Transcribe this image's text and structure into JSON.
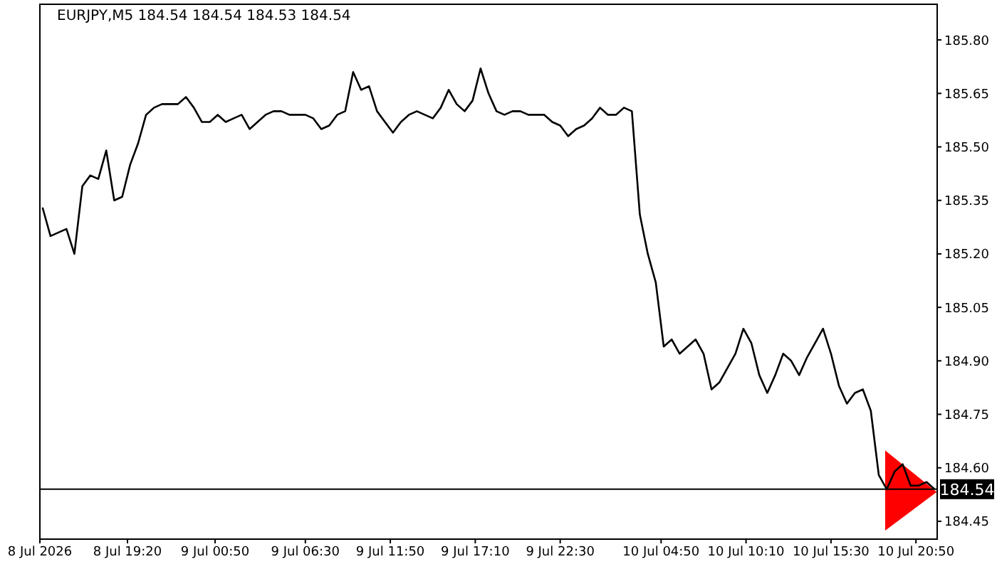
{
  "chart_data": {
    "type": "line",
    "title": "EURJPY,M5  184.54 184.54 184.53 184.54",
    "x": [
      "2026-07-08T14:00",
      "2026-07-08T14:30",
      "2026-07-08T15:00",
      "2026-07-08T15:30",
      "2026-07-08T16:00",
      "2026-07-08T16:30",
      "2026-07-08T17:00",
      "2026-07-08T17:30",
      "2026-07-08T18:00",
      "2026-07-08T18:30",
      "2026-07-08T19:00",
      "2026-07-08T19:30",
      "2026-07-08T20:00",
      "2026-07-08T20:30",
      "2026-07-08T21:00",
      "2026-07-08T21:30",
      "2026-07-08T22:00",
      "2026-07-08T22:30",
      "2026-07-08T23:00",
      "2026-07-08T23:30",
      "2026-07-09T00:00",
      "2026-07-09T00:30",
      "2026-07-09T01:00",
      "2026-07-09T01:30",
      "2026-07-09T02:00",
      "2026-07-09T02:30",
      "2026-07-09T03:00",
      "2026-07-09T03:30",
      "2026-07-09T04:00",
      "2026-07-09T04:30",
      "2026-07-09T05:00",
      "2026-07-09T05:30",
      "2026-07-09T06:00",
      "2026-07-09T06:30",
      "2026-07-09T07:00",
      "2026-07-09T07:30",
      "2026-07-09T08:00",
      "2026-07-09T08:30",
      "2026-07-09T09:00",
      "2026-07-09T09:30",
      "2026-07-09T10:00",
      "2026-07-09T10:30",
      "2026-07-09T11:00",
      "2026-07-09T11:30",
      "2026-07-09T12:00",
      "2026-07-09T12:30",
      "2026-07-09T13:00",
      "2026-07-09T13:30",
      "2026-07-09T14:00",
      "2026-07-09T14:30",
      "2026-07-09T15:00",
      "2026-07-09T15:30",
      "2026-07-09T16:00",
      "2026-07-09T16:30",
      "2026-07-09T17:00",
      "2026-07-09T17:30",
      "2026-07-09T18:00",
      "2026-07-09T18:30",
      "2026-07-09T19:00",
      "2026-07-09T19:30",
      "2026-07-09T20:00",
      "2026-07-09T20:30",
      "2026-07-09T21:00",
      "2026-07-09T21:30",
      "2026-07-09T22:00",
      "2026-07-09T22:30",
      "2026-07-09T23:00",
      "2026-07-09T23:30",
      "2026-07-10T00:00",
      "2026-07-10T00:30",
      "2026-07-10T01:00",
      "2026-07-10T01:30",
      "2026-07-10T02:00",
      "2026-07-10T02:30",
      "2026-07-10T03:00",
      "2026-07-10T03:30",
      "2026-07-10T04:00",
      "2026-07-10T04:30",
      "2026-07-10T05:00",
      "2026-07-10T05:30",
      "2026-07-10T06:00",
      "2026-07-10T06:30",
      "2026-07-10T07:00",
      "2026-07-10T07:30",
      "2026-07-10T08:00",
      "2026-07-10T08:30",
      "2026-07-10T09:00",
      "2026-07-10T09:30",
      "2026-07-10T10:00",
      "2026-07-10T10:30",
      "2026-07-10T11:00",
      "2026-07-10T11:30",
      "2026-07-10T12:00",
      "2026-07-10T12:30",
      "2026-07-10T13:00",
      "2026-07-10T13:30",
      "2026-07-10T14:00",
      "2026-07-10T14:30",
      "2026-07-10T15:00",
      "2026-07-10T15:30",
      "2026-07-10T16:00",
      "2026-07-10T16:30",
      "2026-07-10T17:00",
      "2026-07-10T17:30",
      "2026-07-10T18:00",
      "2026-07-10T18:30",
      "2026-07-10T19:00",
      "2026-07-10T19:30",
      "2026-07-10T20:00",
      "2026-07-10T20:30",
      "2026-07-10T21:00",
      "2026-07-10T21:30",
      "2026-07-10T22:00"
    ],
    "series": [
      {
        "color": "#000000",
        "values": [
          185.33,
          185.25,
          185.26,
          185.27,
          185.2,
          185.39,
          185.42,
          185.41,
          185.49,
          185.35,
          185.36,
          185.45,
          185.51,
          185.59,
          185.61,
          185.62,
          185.62,
          185.62,
          185.64,
          185.61,
          185.57,
          185.57,
          185.59,
          185.57,
          185.58,
          185.59,
          185.55,
          185.57,
          185.59,
          185.6,
          185.6,
          185.59,
          185.59,
          185.59,
          185.58,
          185.55,
          185.56,
          185.59,
          185.6,
          185.71,
          185.66,
          185.67,
          185.6,
          185.57,
          185.54,
          185.57,
          185.59,
          185.6,
          185.59,
          185.58,
          185.61,
          185.66,
          185.62,
          185.6,
          185.63,
          185.72,
          185.65,
          185.6,
          185.59,
          185.6,
          185.6,
          185.59,
          185.59,
          185.59,
          185.57,
          185.56,
          185.53,
          185.55,
          185.56,
          185.58,
          185.61,
          185.59,
          185.59,
          185.61,
          185.6,
          185.31,
          185.2,
          185.12,
          184.94,
          184.96,
          184.92,
          184.94,
          184.96,
          184.92,
          184.82,
          184.84,
          184.88,
          184.92,
          184.99,
          184.95,
          184.86,
          184.81,
          184.86,
          184.92,
          184.9,
          184.86,
          184.91,
          184.95,
          184.99,
          184.92,
          184.83,
          184.78,
          184.81,
          184.82,
          184.76,
          184.58,
          184.54,
          184.59,
          184.61,
          184.55,
          184.55,
          184.56,
          184.54
        ]
      }
    ],
    "xlim": [
      "2026-07-08T13:50",
      "2026-07-10T22:10"
    ],
    "xticks": [
      {
        "value": "2026-07-08T13:50",
        "label": "8 Jul 2026"
      },
      {
        "value": "2026-07-08T19:20",
        "label": "8 Jul 19:20"
      },
      {
        "value": "2026-07-09T00:50",
        "label": "9 Jul 00:50"
      },
      {
        "value": "2026-07-09T06:30",
        "label": "9 Jul 06:30"
      },
      {
        "value": "2026-07-09T11:50",
        "label": "9 Jul 11:50"
      },
      {
        "value": "2026-07-09T17:10",
        "label": "9 Jul 17:10"
      },
      {
        "value": "2026-07-09T22:30",
        "label": "9 Jul 22:30"
      },
      {
        "value": "2026-07-10T04:50",
        "label": "10 Jul 04:50"
      },
      {
        "value": "2026-07-10T10:10",
        "label": "10 Jul 10:10"
      },
      {
        "value": "2026-07-10T15:30",
        "label": "10 Jul 15:30"
      },
      {
        "value": "2026-07-10T20:50",
        "label": "10 Jul 20:50"
      }
    ],
    "ylim": [
      184.4,
      185.9
    ],
    "yticks": [
      {
        "value": 184.45,
        "label": "184.45"
      },
      {
        "value": 184.6,
        "label": "184.60"
      },
      {
        "value": 184.75,
        "label": "184.75"
      },
      {
        "value": 184.9,
        "label": "184.90"
      },
      {
        "value": 185.05,
        "label": "185.05"
      },
      {
        "value": 185.2,
        "label": "185.20"
      },
      {
        "value": 185.35,
        "label": "185.35"
      },
      {
        "value": 185.5,
        "label": "185.50"
      },
      {
        "value": 185.65,
        "label": "185.65"
      },
      {
        "value": 185.8,
        "label": "185.80"
      }
    ],
    "ref_lines": [
      {
        "axis": "y",
        "value": 184.54,
        "label": "184.54",
        "color": "#000000"
      }
    ],
    "marker": "none"
  }
}
